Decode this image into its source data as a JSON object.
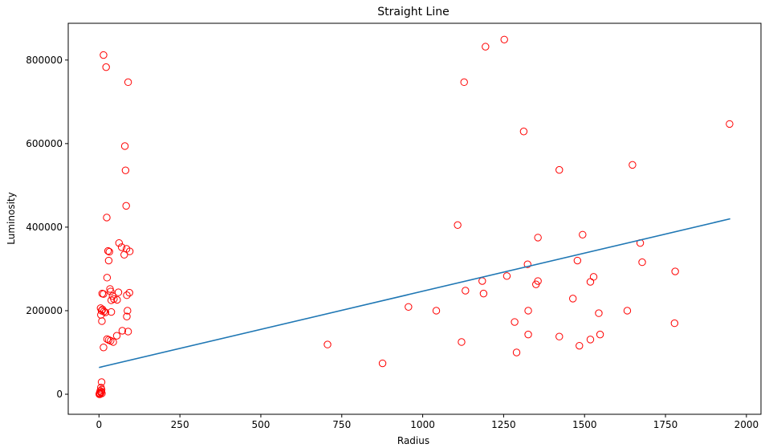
{
  "chart_data": {
    "type": "scatter",
    "title": "Straight Line",
    "xlabel": "Radius",
    "ylabel": "Luminosity",
    "xlim": [
      -95,
      2045
    ],
    "ylim": [
      -48000,
      888000
    ],
    "xticks": [
      0,
      250,
      500,
      750,
      1000,
      1250,
      1500,
      1750,
      2000
    ],
    "yticks": [
      0,
      200000,
      400000,
      600000,
      800000
    ],
    "grid": false,
    "legend": "none",
    "colors": {
      "points": "#ff0000",
      "line": "#1f77b4"
    },
    "fit_line": {
      "x": [
        0,
        1950
      ],
      "y": [
        64000,
        420000
      ]
    },
    "points": {
      "x": [
        14,
        22,
        90,
        80,
        82,
        84,
        24,
        62,
        70,
        85,
        95,
        78,
        28,
        32,
        30,
        25,
        10,
        14,
        34,
        36,
        42,
        46,
        38,
        56,
        60,
        86,
        94,
        88,
        5,
        8,
        11,
        15,
        20,
        38,
        86,
        6,
        9,
        30,
        90,
        55,
        72,
        25,
        36,
        44,
        14,
        8,
        6,
        8,
        4,
        6,
        9,
        2,
        3,
        1,
        2,
        7,
        1252,
        1194,
        1128,
        1312,
        1948,
        1422,
        1648,
        1108,
        1356,
        1494,
        1672,
        1478,
        1678,
        1780,
        1324,
        1528,
        1260,
        1356,
        1184,
        1350,
        1188,
        1132,
        1518,
        1464,
        956,
        1042,
        1544,
        1632,
        1326,
        1284,
        1778,
        1548,
        1326,
        1422,
        1518,
        1120,
        1484,
        706,
        1290,
        876
      ],
      "y": [
        812000,
        783000,
        747000,
        594000,
        536000,
        451000,
        423000,
        362000,
        352000,
        348000,
        342000,
        334000,
        343000,
        341000,
        320000,
        279000,
        241000,
        240000,
        252000,
        246000,
        235000,
        228000,
        225000,
        226000,
        244000,
        237000,
        243000,
        200000,
        206000,
        200000,
        203000,
        198000,
        196000,
        197000,
        186000,
        190000,
        175000,
        130000,
        150000,
        140000,
        152000,
        132000,
        128000,
        125000,
        112000,
        29000,
        16000,
        11000,
        8000,
        4000,
        2000,
        1000,
        0,
        0,
        3000,
        6000,
        849000,
        832000,
        747000,
        629000,
        647000,
        537000,
        549000,
        405000,
        375000,
        382000,
        362000,
        320000,
        316000,
        294000,
        311000,
        281000,
        283000,
        271000,
        271000,
        263000,
        241000,
        248000,
        269000,
        229000,
        209000,
        200000,
        194000,
        200000,
        200000,
        173000,
        170000,
        143000,
        143000,
        138000,
        131000,
        125000,
        116000,
        119000,
        100000,
        74000
      ]
    }
  }
}
